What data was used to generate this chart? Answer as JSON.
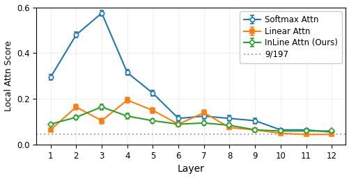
{
  "layers": [
    1,
    2,
    3,
    4,
    5,
    6,
    7,
    8,
    9,
    10,
    11,
    12
  ],
  "softmax_attn": [
    0.295,
    0.48,
    0.575,
    0.315,
    0.225,
    0.115,
    0.125,
    0.115,
    0.105,
    0.065,
    0.065,
    0.055
  ],
  "softmax_err": [
    0.012,
    0.012,
    0.012,
    0.012,
    0.012,
    0.012,
    0.012,
    0.012,
    0.012,
    0.006,
    0.006,
    0.006
  ],
  "linear_attn": [
    0.065,
    0.165,
    0.105,
    0.195,
    0.15,
    0.09,
    0.14,
    0.075,
    0.065,
    0.05,
    0.045,
    0.045
  ],
  "linear_err": [
    0.006,
    0.012,
    0.012,
    0.012,
    0.012,
    0.009,
    0.012,
    0.009,
    0.006,
    0.006,
    0.006,
    0.006
  ],
  "inline_attn": [
    0.09,
    0.12,
    0.165,
    0.125,
    0.105,
    0.09,
    0.095,
    0.085,
    0.065,
    0.06,
    0.06,
    0.06
  ],
  "inline_err": [
    0.006,
    0.009,
    0.012,
    0.012,
    0.009,
    0.009,
    0.009,
    0.009,
    0.006,
    0.006,
    0.006,
    0.006
  ],
  "baseline": 0.0457,
  "softmax_color": "#1f77b4",
  "linear_color": "#ff7f0e",
  "inline_color": "#2ca02c",
  "baseline_color": "#aaaaaa",
  "xlabel": "Layer",
  "ylabel": "Local Attn Score",
  "ylim": [
    0.0,
    0.6
  ],
  "yticks": [
    0.0,
    0.2,
    0.4,
    0.6
  ],
  "legend_labels": [
    "Softmax Attn",
    "Linear Attn",
    "InLine Attn (Ours)",
    "9/197"
  ],
  "figsize": [
    5.02,
    2.56
  ],
  "dpi": 100
}
